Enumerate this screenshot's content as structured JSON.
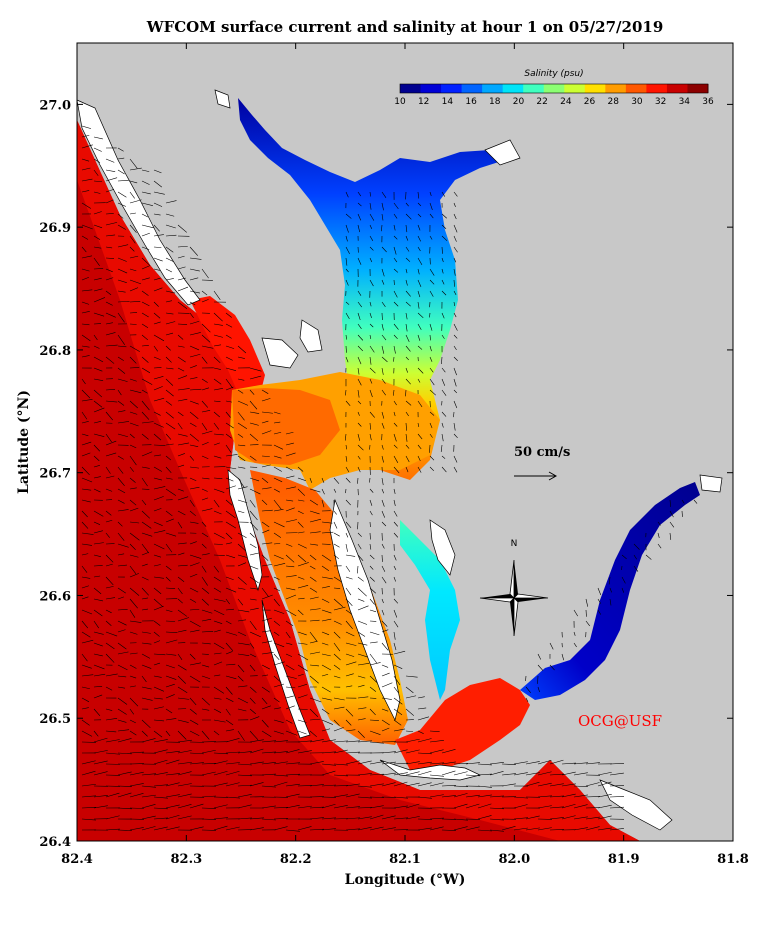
{
  "title": "WFCOM surface current and salinity at hour  1 on 05/27/2019",
  "xlabel": "Longitude (°W)",
  "ylabel": "Latitude (°N)",
  "x_ticks": [
    "82.4",
    "82.3",
    "82.2",
    "82.1",
    "82.0",
    "81.9",
    "81.8"
  ],
  "y_ticks": [
    "27.0",
    "26.9",
    "26.8",
    "26.7",
    "26.6",
    "26.5",
    "26.4"
  ],
  "x_range": [
    82.4,
    81.8
  ],
  "y_range": [
    26.4,
    27.05
  ],
  "colorbar": {
    "title": "Salinity (psu)",
    "ticks": [
      "10",
      "12",
      "14",
      "16",
      "18",
      "20",
      "22",
      "24",
      "26",
      "28",
      "30",
      "32",
      "34",
      "36"
    ],
    "colors": [
      "#00008f",
      "#0000d6",
      "#0020ff",
      "#0064ff",
      "#00a8ff",
      "#00e4f8",
      "#40ffbf",
      "#8cff73",
      "#ccff33",
      "#ffe000",
      "#ff9c00",
      "#ff5800",
      "#ff1400",
      "#c80000",
      "#8c0000"
    ]
  },
  "scale_label": "50 cm/s",
  "compass_label": "N",
  "credit": "OCG@USF",
  "colors": {
    "land": "#c8c8c8",
    "gulf_deep": "#c80000",
    "gulf_near": "#e80a00",
    "credit": "#ff0000"
  }
}
